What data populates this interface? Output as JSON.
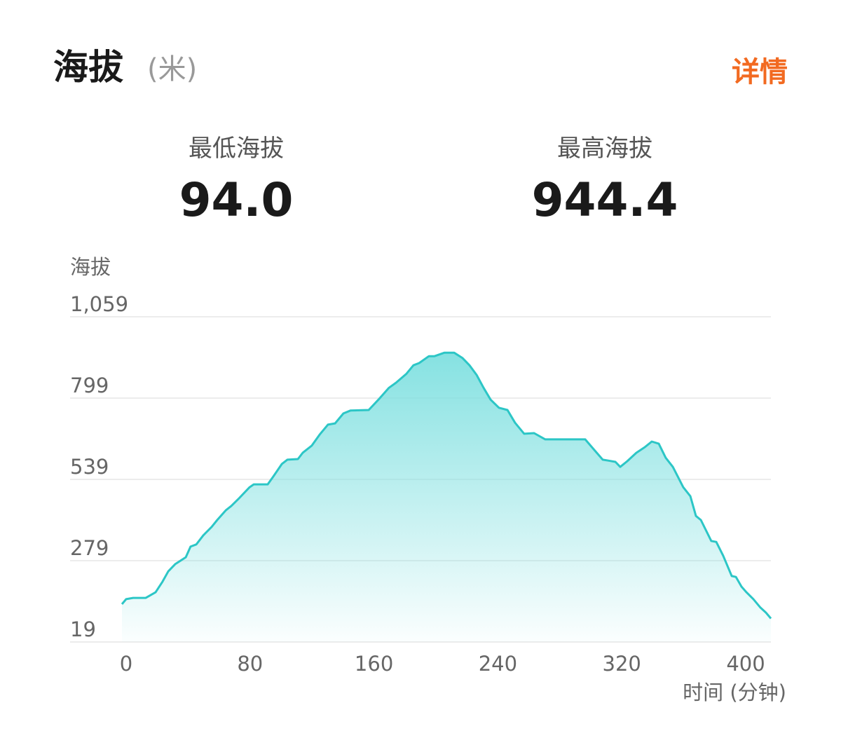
{
  "header": {
    "title": "海拔",
    "unit": "(米)",
    "detail_label": "详情"
  },
  "stats": [
    {
      "label": "最低海拔",
      "value": "94.0"
    },
    {
      "label": "最高海拔",
      "value": "944.4"
    }
  ],
  "colors": {
    "accent": "#f26a21",
    "line": "#2cc6c6",
    "fill_top": "#7fe0e0",
    "grid": "#e6e6e6"
  },
  "chart_data": {
    "type": "area",
    "title": "",
    "xlabel": "时间 (分钟)",
    "ylabel": "海拔",
    "xlim": [
      0,
      419
    ],
    "ylim": [
      19,
      1059
    ],
    "x_ticks": [
      0,
      80,
      160,
      240,
      320,
      400
    ],
    "x_tick_labels": [
      "0",
      "80",
      "160",
      "240",
      "320",
      "400"
    ],
    "y_ticks": [
      19,
      279,
      539,
      799,
      1059
    ],
    "y_tick_labels": [
      "19",
      "279",
      "539",
      "799",
      "1,059"
    ],
    "grid": "horizontal",
    "points": [
      [
        0,
        140
      ],
      [
        2.7,
        156
      ],
      [
        7.2,
        160
      ],
      [
        15.4,
        160
      ],
      [
        21.7,
        178
      ],
      [
        26.2,
        212
      ],
      [
        29.9,
        245
      ],
      [
        34.4,
        268
      ],
      [
        41.2,
        290
      ],
      [
        44.3,
        324
      ],
      [
        48,
        331
      ],
      [
        52.5,
        360
      ],
      [
        57.9,
        387
      ],
      [
        61.5,
        409
      ],
      [
        67,
        440
      ],
      [
        70.6,
        454
      ],
      [
        75.1,
        476
      ],
      [
        82.4,
        514
      ],
      [
        85.1,
        523
      ],
      [
        94.1,
        523
      ],
      [
        97.7,
        548
      ],
      [
        103.2,
        588
      ],
      [
        106.8,
        602
      ],
      [
        113.6,
        604
      ],
      [
        116.7,
        624
      ],
      [
        122.6,
        647
      ],
      [
        127.6,
        682
      ],
      [
        133,
        714
      ],
      [
        137.6,
        718
      ],
      [
        143,
        750
      ],
      [
        147.5,
        759
      ],
      [
        159.3,
        761
      ],
      [
        165.6,
        794
      ],
      [
        172.4,
        832
      ],
      [
        176.9,
        848
      ],
      [
        183.7,
        877
      ],
      [
        188.2,
        904
      ],
      [
        191.9,
        911
      ],
      [
        198.2,
        933
      ],
      [
        201.8,
        933
      ],
      [
        208.1,
        944
      ],
      [
        214.5,
        944
      ],
      [
        219.9,
        927
      ],
      [
        224.4,
        904
      ],
      [
        229,
        873
      ],
      [
        233.5,
        832
      ],
      [
        238,
        794
      ],
      [
        243.4,
        768
      ],
      [
        248.9,
        761
      ],
      [
        253.8,
        720
      ],
      [
        259.7,
        685
      ],
      [
        266.1,
        687
      ],
      [
        273.3,
        667
      ],
      [
        283.3,
        667
      ],
      [
        299.1,
        667
      ],
      [
        305,
        633
      ],
      [
        310.4,
        602
      ],
      [
        314,
        599
      ],
      [
        318.6,
        595
      ],
      [
        321.7,
        579
      ],
      [
        326.2,
        597
      ],
      [
        332.1,
        624
      ],
      [
        337.6,
        642
      ],
      [
        342.1,
        660
      ],
      [
        346.6,
        653
      ],
      [
        351.1,
        608
      ],
      [
        355.7,
        579
      ],
      [
        362.4,
        514
      ],
      [
        367,
        485
      ],
      [
        370.6,
        422
      ],
      [
        373.8,
        409
      ],
      [
        380.5,
        342
      ],
      [
        383.7,
        339
      ],
      [
        388.2,
        295
      ],
      [
        393.7,
        230
      ],
      [
        396.4,
        227
      ],
      [
        400,
        196
      ],
      [
        403.2,
        178
      ],
      [
        407.7,
        156
      ],
      [
        412.2,
        129
      ],
      [
        415.8,
        113
      ],
      [
        419,
        94
      ]
    ]
  }
}
